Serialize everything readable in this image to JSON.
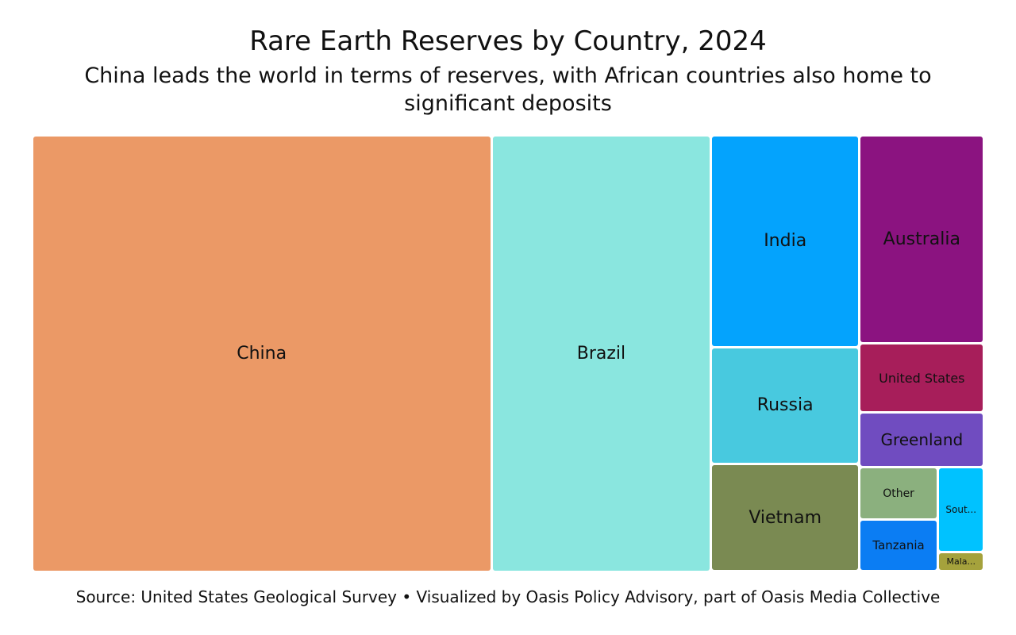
{
  "colors": {
    "China": "#eb9966",
    "Brazil": "#8ae6df",
    "India": "#04a3fd",
    "Russia": "#48c9df",
    "Vietnam": "#7a8a52",
    "Australia": "#8b1380",
    "United States": "#a71e5a",
    "Greenland": "#704cc0",
    "Other": "#8bb07e",
    "Tanzania": "#0b7df3",
    "South Africa": "#00c2ff",
    "Malawi": "#a5a23c"
  },
  "chart_data": {
    "type": "treemap",
    "title": "Rare Earth Reserves by Country, 2024",
    "subtitle": "China leads the world in terms of reserves, with African countries also home to significant deposits",
    "source": "Source: United States Geological Survey • Visualized by Oasis Policy Advisory, part of Oasis Media Collective",
    "units": "",
    "items": [
      {
        "name": "China",
        "label": "China",
        "value": 44
      },
      {
        "name": "Brazil",
        "label": "Brazil",
        "value": 21
      },
      {
        "name": "India",
        "label": "India",
        "value": 6.9
      },
      {
        "name": "Russia",
        "label": "Russia",
        "value": 3.8
      },
      {
        "name": "Vietnam",
        "label": "Vietnam",
        "value": 3.5
      },
      {
        "name": "Australia",
        "label": "Australia",
        "value": 5.7
      },
      {
        "name": "United States",
        "label": "United States",
        "value": 1.9
      },
      {
        "name": "Greenland",
        "label": "Greenland",
        "value": 1.5
      },
      {
        "name": "Other",
        "label": "Other",
        "value": 0.9
      },
      {
        "name": "Tanzania",
        "label": "Tanzania",
        "value": 0.89
      },
      {
        "name": "South Africa",
        "label": "Sout...",
        "value": 0.86
      },
      {
        "name": "Malawi",
        "label": "Mala...",
        "value": 0.2
      }
    ]
  }
}
